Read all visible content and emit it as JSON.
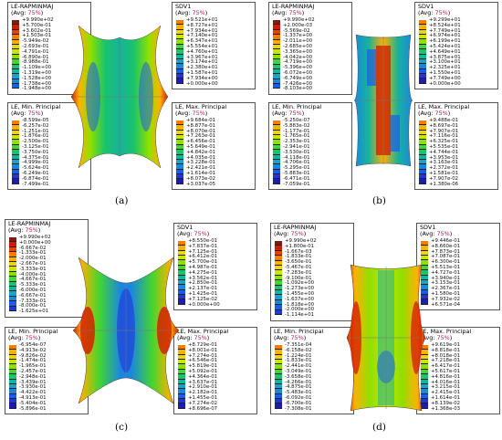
{
  "colors": {
    "top16": [
      "#7a1e12",
      "#d11a00",
      "#ff3c00",
      "#ff7b00",
      "#ffb000",
      "#f2d500",
      "#c7e600",
      "#8ee000",
      "#43d62e",
      "#19c46a",
      "#17b39b",
      "#1aa3c8",
      "#1b86e0",
      "#1c5ce8",
      "#2235d8",
      "#1d1bb0"
    ],
    "top15": [
      "#d11a00",
      "#ff3c00",
      "#ff7b00",
      "#ffb000",
      "#f2d500",
      "#c7e600",
      "#8ee000",
      "#43d62e",
      "#19c46a",
      "#17b39b",
      "#1aa3c8",
      "#1b86e0",
      "#1c5ce8",
      "#2235d8",
      "#1d1bb0"
    ]
  },
  "panels": {
    "a": {
      "label": "(a)",
      "tl": {
        "title": "LE-RAPMINMAJ",
        "avg": "(Avg: ",
        "pct": "75%",
        "close": ")",
        "values": [
          "+9.990e+02",
          "+5.700e-01",
          "+3.602e-01",
          "+1.503e-01",
          "-5.949e-02",
          "-2.693e-01",
          "-4.791e-01",
          "-6.890e-01",
          "-8.988e-01",
          "-1.109e+00",
          "-1.319e+00",
          "-1.528e+00",
          "-1.738e+00",
          "-1.948e+00"
        ]
      },
      "tr": {
        "title": "SDV1",
        "avg": "(Avg: ",
        "pct": "75%",
        "close": ")",
        "values": [
          "+9.521e+01",
          "+8.727e+01",
          "+7.934e+01",
          "+7.140e+01",
          "+6.347e+01",
          "+5.554e+01",
          "+4.760e+01",
          "+3.967e+01",
          "+3.174e+01",
          "+2.380e+01",
          "+1.587e+01",
          "+7.934e+00",
          "+0.000e+00"
        ]
      },
      "bl": {
        "title": "LE, Min. Principal",
        "avg": "(Avg: ",
        "pct": "75%",
        "close": ")",
        "values": [
          "-8.599e-05",
          "-6.257e-02",
          "-1.251e-01",
          "-1.876e-01",
          "-2.500e-01",
          "-3.125e-01",
          "-3.750e-01",
          "-4.375e-01",
          "-4.999e-01",
          "-5.624e-01",
          "-6.249e-01",
          "-6.874e-01",
          "-7.499e-01"
        ]
      },
      "br": {
        "title": "LE, Max. Principal",
        "avg": "(Avg: ",
        "pct": "75%",
        "close": ")",
        "values": [
          "+9.684e-01",
          "+8.877e-01",
          "+8.070e-01",
          "+7.263e-01",
          "+6.456e-01",
          "+5.649e-01",
          "+4.842e-01",
          "+4.035e-01",
          "+3.228e-01",
          "+2.421e-01",
          "+1.614e-01",
          "+8.073e-02",
          "+3.037e-05"
        ]
      }
    },
    "b": {
      "label": "(b)",
      "tl": {
        "title": "LE-RAPMINMAJ",
        "avg": "(Avg: ",
        "pct": "75%",
        "close": ")",
        "values": [
          "+9.990e+02",
          "+2.000e-03",
          "-5.569e-02",
          "-1.337e+00",
          "-2.011e+00",
          "-2.685e+00",
          "-3.365e+00",
          "-4.042e+00",
          "-4.719e+00",
          "-5.396e+00",
          "-6.072e+00",
          "-6.749e+00",
          "-7.426e+00",
          "-8.103e+00"
        ]
      },
      "tr": {
        "title": "SDV1",
        "avg": "(Avg: ",
        "pct": "75%",
        "close": ")",
        "values": [
          "+9.299e+01",
          "+8.524e+01",
          "+7.749e+01",
          "+6.974e+01",
          "+6.199e+01",
          "+5.424e+01",
          "+4.649e+01",
          "+3.875e+01",
          "+3.100e+01",
          "+2.325e+01",
          "+1.550e+01",
          "+7.749e+00",
          "+0.000e+00"
        ]
      },
      "bl": {
        "title": "LE, Min. Principal",
        "avg": "(Avg: ",
        "pct": "75%",
        "close": ")",
        "values": [
          "-5.250e-07",
          "-5.883e-02",
          "-1.177e-01",
          "-1.765e-01",
          "-2.353e-01",
          "-2.941e-01",
          "-3.530e-01",
          "-4.118e-01",
          "-4.706e-01",
          "-5.295e-01",
          "-5.883e-01",
          "-6.471e-01",
          "-7.059e-01"
        ]
      },
      "br": {
        "title": "LE, Max. Principal",
        "avg": "(Avg: ",
        "pct": "75%",
        "close": ")",
        "values": [
          "+9.488e-01",
          "+8.697e-01",
          "+7.907e-01",
          "+7.116e-01",
          "+6.325e-01",
          "+5.535e-01",
          "+4.744e-01",
          "+3.953e-01",
          "+3.163e-01",
          "+2.372e-01",
          "+1.581e-01",
          "+7.907e-02",
          "+1.380e-06"
        ]
      }
    },
    "c": {
      "label": "(c)",
      "tl": {
        "title": "LE-RAPMINMAJ",
        "avg": "(Avg: ",
        "pct": "75%",
        "close": ")",
        "values": [
          "+9.990e+02",
          "+0.000e+00",
          "-6.667e-02",
          "-1.333e-01",
          "-2.000e-01",
          "-2.667e-01",
          "-3.333e-01",
          "-4.000e-01",
          "-4.667e-01",
          "-5.333e-01",
          "-6.000e-01",
          "-6.667e-01",
          "-7.333e-01",
          "-8.000e-01",
          "-1.625e+01"
        ]
      },
      "tr": {
        "title": "SDV1",
        "avg": "(Avg: ",
        "pct": "75%",
        "close": ")",
        "values": [
          "+8.550e-01",
          "+7.837e-01",
          "+7.125e-01",
          "+6.412e-01",
          "+5.700e-01",
          "+4.987e-01",
          "+4.275e-01",
          "+3.562e-01",
          "+2.850e-01",
          "+2.137e-01",
          "+1.425e-01",
          "+7.125e-02",
          "+0.000e+00"
        ]
      },
      "bl": {
        "title": "LE, Min. Principal",
        "avg": "(Avg: ",
        "pct": "75%",
        "close": ")",
        "values": [
          "-6.954e-07",
          "-4.913e-02",
          "-9.826e-02",
          "-1.474e-01",
          "-1.965e-01",
          "-2.457e-01",
          "-2.948e-01",
          "-3.439e-01",
          "-3.930e-01",
          "-4.422e-01",
          "-4.913e-01",
          "-5.404e-01",
          "-5.896e-01"
        ]
      },
      "br": {
        "title": "LE, Max. Principal",
        "avg": "(Avg: ",
        "pct": "75%",
        "close": ")",
        "values": [
          "+8.729e-01",
          "+8.001e-01",
          "+7.274e-01",
          "+6.546e-01",
          "+5.819e-01",
          "+5.092e-01",
          "+4.364e-01",
          "+3.637e-01",
          "+2.910e-01",
          "+2.182e-01",
          "+1.455e-01",
          "+7.274e-02",
          "+8.696e-07"
        ]
      }
    },
    "d": {
      "label": "(d)",
      "tl": {
        "title": "LE-RAPMINMAJ",
        "avg": "(Avg: ",
        "pct": "75%",
        "close": ")",
        "values": [
          "+9.990e+02",
          "+1.800e-01",
          "-1.667e-03",
          "-1.833e-01",
          "-3.650e-01",
          "-5.467e-01",
          "-7.283e-01",
          "-9.100e-01",
          "-1.092e+00",
          "-1.273e+00",
          "-1.455e+00",
          "-1.637e+00",
          "-1.818e+00",
          "-2.000e+00",
          "-1.114e+01"
        ]
      },
      "tr": {
        "title": "SDV1",
        "avg": "(Avg: ",
        "pct": "75%",
        "close": ")",
        "values": [
          "+9.446e-01",
          "+8.660e-01",
          "+7.873e-01",
          "+7.087e-01",
          "+6.300e-01",
          "+5.513e-01",
          "+4.727e-01",
          "+3.940e-01",
          "+3.153e-01",
          "+2.367e-01",
          "+1.580e-01",
          "+7.932e-02",
          "+6.571e-04"
        ]
      },
      "bl": {
        "title": "LE, Min. Principal",
        "avg": "(Avg: ",
        "pct": "75%",
        "close": ")",
        "values": [
          "-7.351e-04",
          "-6.158e-02",
          "-1.224e-01",
          "-1.833e-01",
          "-2.441e-01",
          "-3.049e-01",
          "-3.658e-01",
          "-4.266e-01",
          "-4.875e-01",
          "-5.483e-01",
          "-6.092e-01",
          "-6.700e-01",
          "-7.308e-01"
        ]
      },
      "br": {
        "title": "LE, Max. Principal",
        "avg": "(Avg: ",
        "pct": "75%",
        "close": ")",
        "values": [
          "+9.619e-01",
          "+8.818e-01",
          "+8.018e-01",
          "+7.218e-01",
          "+6.417e-01",
          "+5.617e-01",
          "+4.816e-01",
          "+4.016e-01",
          "+3.215e-01",
          "+2.415e-01",
          "+1.614e-01",
          "+8.139e-02",
          "+1.368e-03"
        ]
      }
    }
  }
}
